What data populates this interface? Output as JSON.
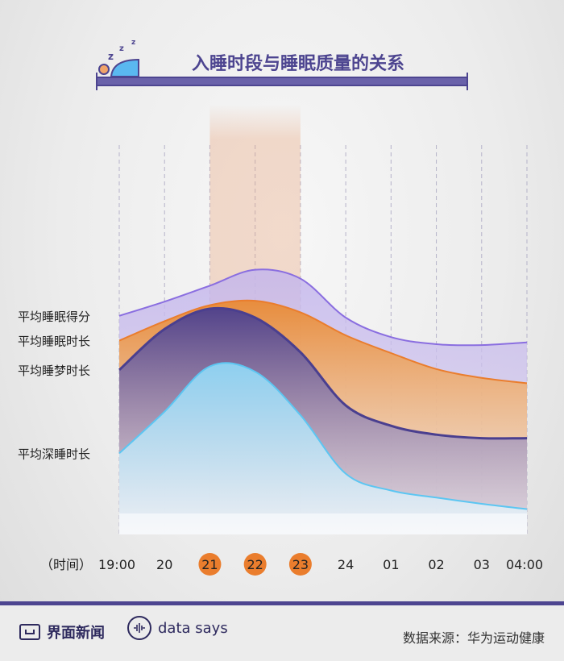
{
  "title": "入睡时段与睡眠质量的关系",
  "chart_data": {
    "type": "area",
    "x_unit_label": "（时间）",
    "categories": [
      "19:00",
      "20",
      "21",
      "22",
      "23",
      "24",
      "01",
      "02",
      "03",
      "04:00"
    ],
    "highlighted_categories": [
      "21",
      "22",
      "23"
    ],
    "highlight_band": [
      "21",
      "23"
    ],
    "y_axis_shown": false,
    "grid": "vertical dashed",
    "series": [
      {
        "name": "平均睡眠得分",
        "color": "#8a6ee0",
        "fill": "#b6a6e6",
        "values": [
          62,
          78,
          96,
          114,
          104,
          60,
          38,
          30,
          29,
          32
        ]
      },
      {
        "name": "平均睡眠时长",
        "color": "#ea7d2d",
        "fill": "#ea8f3c",
        "values": [
          34,
          56,
          74,
          79,
          66,
          40,
          20,
          2,
          -8,
          -14
        ]
      },
      {
        "name": "平均睡梦时长",
        "color": "#4a3f8f",
        "fill": "#4a3f8f",
        "values": [
          1,
          47,
          70,
          60,
          21,
          -39,
          -62,
          -72,
          -76,
          -76
        ]
      },
      {
        "name": "平均深睡时长",
        "color": "#5cc6f2",
        "fill": "#8ed6f5",
        "values": [
          -93,
          -46,
          5,
          -1,
          -50,
          -116,
          -135,
          -143,
          -150,
          -156
        ]
      }
    ]
  },
  "footer": {
    "brand": "界面新闻",
    "data_says": "data says",
    "source": "数据来源：华为运动健康"
  },
  "colors": {
    "accent": "#4d4590",
    "highlight_tick": "#ea7d2d"
  },
  "icons": {
    "title_icon": "sleeping-person-icon",
    "brand_icon": "jiemian-logo-icon",
    "data_says_icon": "soundwave-icon"
  }
}
